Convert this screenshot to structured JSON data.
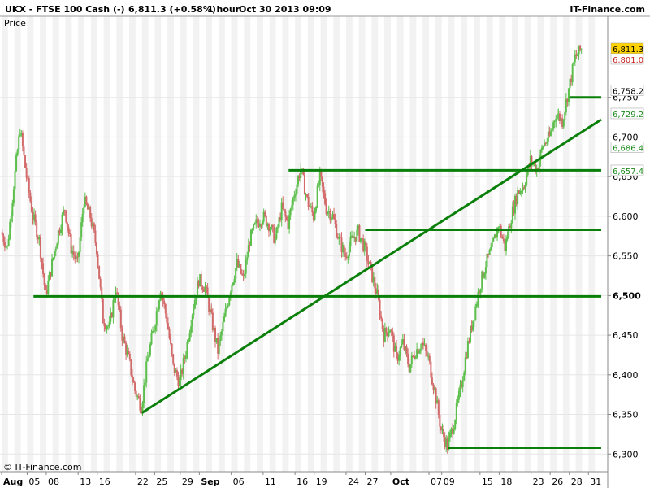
{
  "header": {
    "symbol": "UKX - FTSE 100 Cash (-)",
    "quote": "6,811.3 (+0.58%)",
    "timeframe": "1 hour",
    "timestamp": "Oct 30 2013 09:09",
    "brand": "IT-Finance.com",
    "panel_label": "Price",
    "footer_brand": "© IT-Finance.com"
  },
  "chart_data": {
    "type": "candlestick",
    "title": "UKX - FTSE 100 Cash (-)",
    "ylim": [
      6290,
      6840
    ],
    "y_ticks": [
      {
        "v": 6300,
        "label": "6,300"
      },
      {
        "v": 6350,
        "label": "6,350"
      },
      {
        "v": 6400,
        "label": "6,400"
      },
      {
        "v": 6450,
        "label": "6,450"
      },
      {
        "v": 6500,
        "label": "6,500",
        "bold": true
      },
      {
        "v": 6550,
        "label": "6,550"
      },
      {
        "v": 6600,
        "label": "6,600"
      },
      {
        "v": 6650,
        "label": "6,650"
      },
      {
        "v": 6700,
        "label": "6,700"
      },
      {
        "v": 6750,
        "label": "6,750"
      }
    ],
    "x_ticks": [
      {
        "t": 0,
        "label": "Aug",
        "month": true
      },
      {
        "t": 4,
        "label": "05"
      },
      {
        "t": 7,
        "label": "08"
      },
      {
        "t": 12,
        "label": "13"
      },
      {
        "t": 15,
        "label": "16"
      },
      {
        "t": 21,
        "label": "22"
      },
      {
        "t": 24,
        "label": "25"
      },
      {
        "t": 28,
        "label": "29"
      },
      {
        "t": 31,
        "label": "Sep",
        "month": true
      },
      {
        "t": 36,
        "label": "06"
      },
      {
        "t": 41,
        "label": "11"
      },
      {
        "t": 46,
        "label": "16"
      },
      {
        "t": 49,
        "label": "19"
      },
      {
        "t": 54,
        "label": "24"
      },
      {
        "t": 57,
        "label": "27"
      },
      {
        "t": 61,
        "label": "Oct",
        "month": true
      },
      {
        "t": 67,
        "label": "07"
      },
      {
        "t": 69,
        "label": "09"
      },
      {
        "t": 75,
        "label": "15"
      },
      {
        "t": 78,
        "label": "18"
      },
      {
        "t": 83,
        "label": "23"
      },
      {
        "t": 86,
        "label": "26"
      },
      {
        "t": 89,
        "label": "28"
      },
      {
        "t": 92,
        "label": "31"
      }
    ],
    "price_path": [
      [
        0,
        6580
      ],
      [
        1,
        6560
      ],
      [
        2,
        6640
      ],
      [
        3,
        6710
      ],
      [
        4,
        6650
      ],
      [
        5,
        6600
      ],
      [
        6,
        6570
      ],
      [
        7,
        6500
      ],
      [
        8,
        6540
      ],
      [
        9,
        6580
      ],
      [
        10,
        6610
      ],
      [
        11,
        6560
      ],
      [
        12,
        6540
      ],
      [
        13,
        6620
      ],
      [
        14,
        6600
      ],
      [
        15,
        6560
      ],
      [
        16,
        6470
      ],
      [
        17,
        6460
      ],
      [
        18,
        6510
      ],
      [
        19,
        6450
      ],
      [
        20,
        6420
      ],
      [
        21,
        6380
      ],
      [
        22,
        6360
      ],
      [
        23,
        6420
      ],
      [
        24,
        6460
      ],
      [
        25,
        6510
      ],
      [
        26,
        6470
      ],
      [
        27,
        6410
      ],
      [
        28,
        6390
      ],
      [
        29,
        6430
      ],
      [
        30,
        6480
      ],
      [
        31,
        6520
      ],
      [
        32,
        6510
      ],
      [
        33,
        6470
      ],
      [
        34,
        6430
      ],
      [
        35,
        6470
      ],
      [
        36,
        6510
      ],
      [
        37,
        6540
      ],
      [
        38,
        6520
      ],
      [
        39,
        6570
      ],
      [
        40,
        6590
      ],
      [
        41,
        6600
      ],
      [
        42,
        6590
      ],
      [
        43,
        6570
      ],
      [
        44,
        6610
      ],
      [
        45,
        6590
      ],
      [
        46,
        6630
      ],
      [
        47,
        6660
      ],
      [
        48,
        6620
      ],
      [
        49,
        6600
      ],
      [
        50,
        6650
      ],
      [
        51,
        6610
      ],
      [
        52,
        6600
      ],
      [
        53,
        6570
      ],
      [
        54,
        6550
      ],
      [
        55,
        6570
      ],
      [
        56,
        6580
      ],
      [
        57,
        6560
      ],
      [
        58,
        6530
      ],
      [
        59,
        6500
      ],
      [
        60,
        6450
      ],
      [
        61,
        6460
      ],
      [
        62,
        6420
      ],
      [
        63,
        6440
      ],
      [
        64,
        6410
      ],
      [
        65,
        6430
      ],
      [
        66,
        6440
      ],
      [
        67,
        6420
      ],
      [
        68,
        6380
      ],
      [
        69,
        6330
      ],
      [
        70,
        6310
      ],
      [
        71,
        6340
      ],
      [
        72,
        6380
      ],
      [
        73,
        6430
      ],
      [
        74,
        6470
      ],
      [
        75,
        6510
      ],
      [
        76,
        6540
      ],
      [
        77,
        6560
      ],
      [
        78,
        6590
      ],
      [
        79,
        6560
      ],
      [
        80,
        6600
      ],
      [
        81,
        6630
      ],
      [
        82,
        6640
      ],
      [
        83,
        6670
      ],
      [
        84,
        6660
      ],
      [
        85,
        6690
      ],
      [
        86,
        6700
      ],
      [
        87,
        6730
      ],
      [
        88,
        6720
      ],
      [
        89,
        6760
      ],
      [
        90,
        6800
      ],
      [
        91,
        6811
      ]
    ],
    "horizontal_lines": [
      {
        "t0": 5,
        "t1": 94,
        "v": 6499
      },
      {
        "t0": 45,
        "t1": 94,
        "v": 6658
      },
      {
        "t0": 57,
        "t1": 94,
        "v": 6583
      },
      {
        "t0": 70,
        "t1": 94,
        "v": 6308
      },
      {
        "t0": 89,
        "t1": 94,
        "v": 6750
      }
    ],
    "trendline": {
      "t0": 22,
      "v0": 6352,
      "t1": 94,
      "v1": 6722
    },
    "price_labels": [
      {
        "v": 6811.3,
        "label": "6,811.3",
        "bg": "#ffd200",
        "fg": "#000000"
      },
      {
        "v": 6801.0,
        "label": "6,801.0",
        "bg": "#ffffff",
        "fg": "#cc2222"
      },
      {
        "v": 6758.2,
        "label": "6,758.2",
        "bg": "#ffffff",
        "fg": "#000000"
      },
      {
        "v": 6729.2,
        "label": "6,729.2",
        "bg": "#ffffff",
        "fg": "#1a8a1a"
      },
      {
        "v": 6686.4,
        "label": "6,686.4",
        "bg": "#ffffff",
        "fg": "#1a8a1a"
      },
      {
        "v": 6657.4,
        "label": "6,657.4",
        "bg": "#ffffff",
        "fg": "#1a8a1a"
      }
    ]
  },
  "colors": {
    "up": "#5cbf4c",
    "down": "#d36a6a",
    "lines": "#0a800a",
    "grid_band": "#f2f2f2"
  }
}
